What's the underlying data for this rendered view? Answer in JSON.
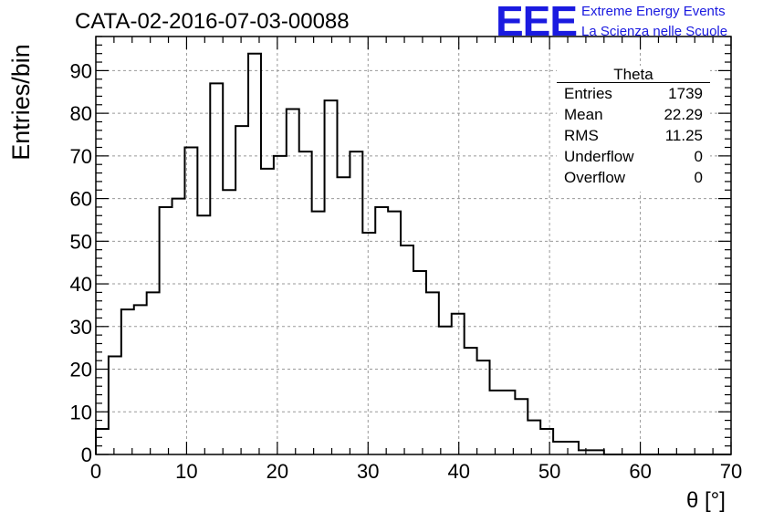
{
  "header": {
    "title": "CATA-02-2016-07-03-00088"
  },
  "logo": {
    "mark": "EEE",
    "line1": "Extreme Energy Events",
    "line2": "La Scienza nelle Scuole",
    "color": "#1a1ae0"
  },
  "stats": {
    "title": "Theta",
    "rows": [
      {
        "key": "Entries",
        "value": "1739"
      },
      {
        "key": "Mean",
        "value": "22.29"
      },
      {
        "key": "RMS",
        "value": "11.25"
      },
      {
        "key": "Underflow",
        "value": "0"
      },
      {
        "key": "Overflow",
        "value": "0"
      }
    ]
  },
  "chart_data": {
    "type": "bar",
    "style": "step-histogram",
    "title": "CATA-02-2016-07-03-00088",
    "xlabel": "θ [°]",
    "ylabel": "Entries/bin",
    "xlim": [
      0,
      70
    ],
    "ylim": [
      0,
      98
    ],
    "bin_width": 1.4,
    "x_ticks": [
      0,
      10,
      20,
      30,
      40,
      50,
      60,
      70
    ],
    "y_ticks": [
      0,
      10,
      20,
      30,
      40,
      50,
      60,
      70,
      80,
      90
    ],
    "grid": true,
    "line_color": "#000000",
    "values": [
      6,
      23,
      34,
      35,
      38,
      58,
      60,
      72,
      56,
      87,
      62,
      77,
      94,
      67,
      70,
      81,
      71,
      57,
      83,
      65,
      71,
      52,
      58,
      57,
      49,
      43,
      38,
      30,
      33,
      25,
      22,
      15,
      15,
      13,
      8,
      6,
      3,
      3,
      1,
      1,
      0,
      0,
      0,
      0,
      0,
      0,
      0,
      0,
      0,
      0
    ]
  }
}
